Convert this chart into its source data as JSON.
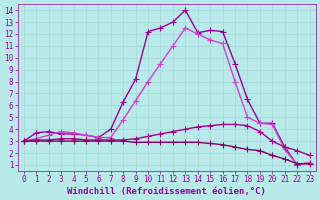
{
  "xlabel": "Windchill (Refroidissement éolien,°C)",
  "x_values": [
    0,
    1,
    2,
    3,
    4,
    5,
    6,
    7,
    8,
    9,
    10,
    11,
    12,
    13,
    14,
    15,
    16,
    17,
    18,
    19,
    20,
    21,
    22,
    23
  ],
  "lines": [
    {
      "y": [
        3.0,
        3.7,
        3.8,
        3.6,
        3.6,
        3.5,
        3.3,
        4.0,
        6.3,
        8.2,
        12.2,
        12.5,
        13.0,
        14.0,
        12.1,
        12.3,
        12.2,
        9.5,
        6.5,
        4.5,
        4.5,
        2.5,
        1.0,
        1.2
      ],
      "color": "#990099",
      "linewidth": 1.0,
      "marker": "+",
      "markersize": 4
    },
    {
      "y": [
        3.0,
        3.2,
        3.5,
        3.8,
        3.7,
        3.5,
        3.3,
        3.3,
        4.8,
        6.4,
        8.0,
        9.5,
        11.0,
        12.5,
        12.0,
        11.5,
        11.2,
        8.0,
        5.0,
        4.5,
        4.4,
        2.3,
        1.0,
        1.2
      ],
      "color": "#cc44cc",
      "linewidth": 1.0,
      "marker": "+",
      "markersize": 4
    },
    {
      "y": [
        3.0,
        3.1,
        3.1,
        3.2,
        3.2,
        3.1,
        3.1,
        3.1,
        3.1,
        3.2,
        3.4,
        3.6,
        3.8,
        4.0,
        4.2,
        4.3,
        4.4,
        4.4,
        4.3,
        3.8,
        3.0,
        2.5,
        2.2,
        1.8
      ],
      "color": "#aa0088",
      "linewidth": 1.0,
      "marker": "+",
      "markersize": 4
    },
    {
      "y": [
        3.0,
        3.0,
        3.0,
        3.0,
        3.0,
        3.0,
        3.0,
        3.0,
        3.0,
        2.9,
        2.9,
        2.9,
        2.9,
        2.9,
        2.9,
        2.8,
        2.7,
        2.5,
        2.3,
        2.2,
        1.8,
        1.5,
        1.1,
        1.1
      ],
      "color": "#880066",
      "linewidth": 1.0,
      "marker": "+",
      "markersize": 4
    }
  ],
  "xlim": [
    -0.5,
    23.5
  ],
  "ylim": [
    0.5,
    14.5
  ],
  "yticks": [
    1,
    2,
    3,
    4,
    5,
    6,
    7,
    8,
    9,
    10,
    11,
    12,
    13,
    14
  ],
  "xticks": [
    0,
    1,
    2,
    3,
    4,
    5,
    6,
    7,
    8,
    9,
    10,
    11,
    12,
    13,
    14,
    15,
    16,
    17,
    18,
    19,
    20,
    21,
    22,
    23
  ],
  "bg_color": "#b8eaea",
  "grid_color": "#a8d8d8",
  "line_color": "#990099",
  "xlabel_fontsize": 6.5,
  "tick_fontsize": 5.5
}
